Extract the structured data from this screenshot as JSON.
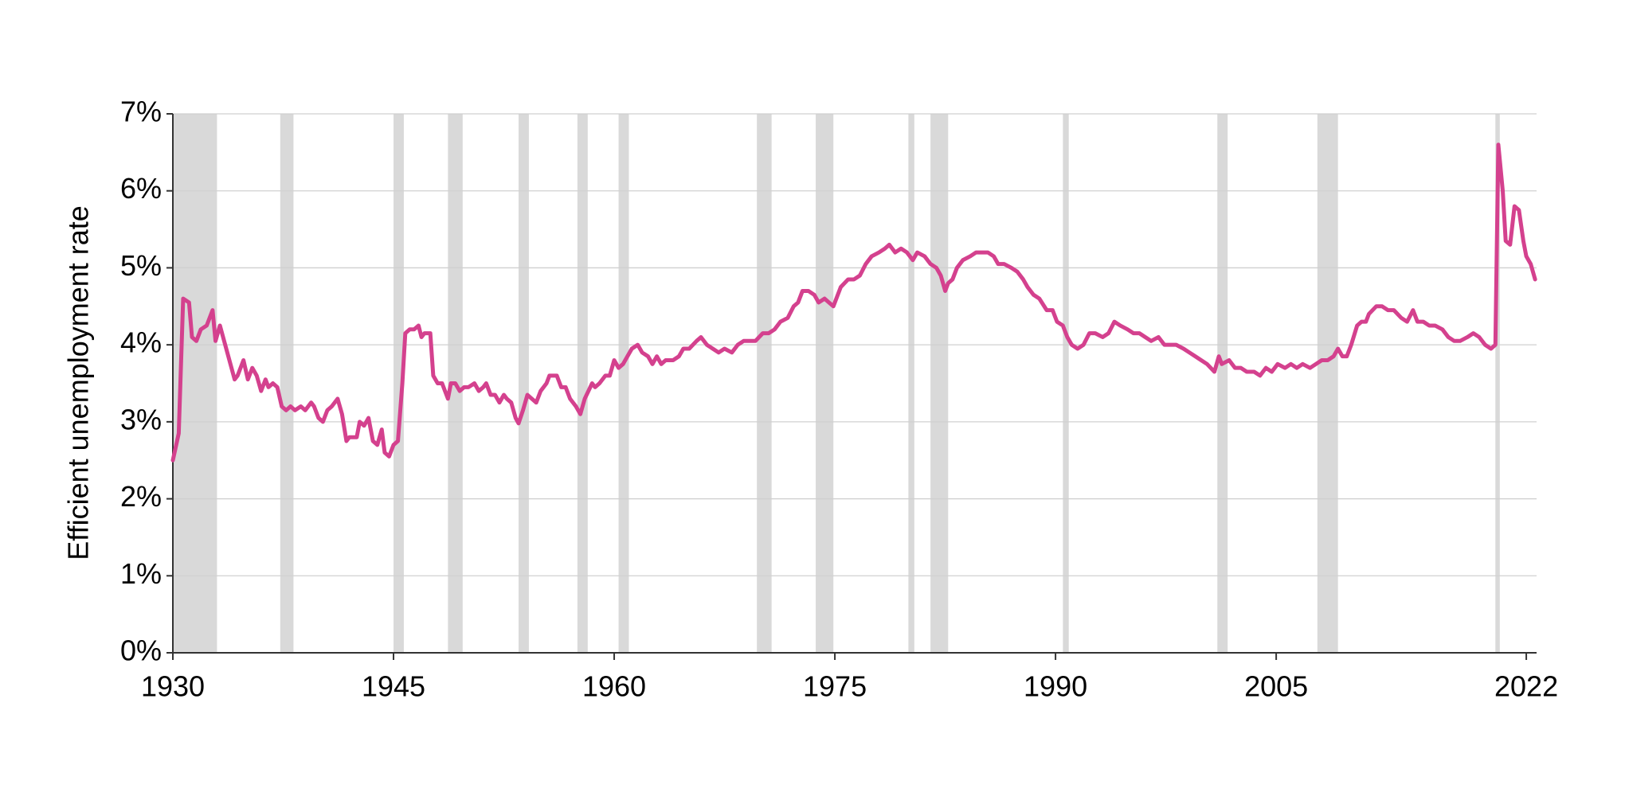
{
  "chart_data": {
    "type": "line",
    "ylabel": "Efficient unemployment rate",
    "color": "#d4418e",
    "shade_color": "#d9d9d9",
    "grid": true,
    "xlim": [
      1930,
      2022.7
    ],
    "xticks": [
      1930,
      1945,
      1960,
      1975,
      1990,
      2005,
      2022
    ],
    "ylim": [
      0,
      7
    ],
    "yticks": [
      {
        "value": 0,
        "label": "0%"
      },
      {
        "value": 1,
        "label": "1%"
      },
      {
        "value": 2,
        "label": "2%"
      },
      {
        "value": 3,
        "label": "3%"
      },
      {
        "value": 4,
        "label": "4%"
      },
      {
        "value": 5,
        "label": "5%"
      },
      {
        "value": 6,
        "label": "6%"
      },
      {
        "value": 7,
        "label": "7%"
      }
    ],
    "recessions": [
      [
        1930.0,
        1933.0
      ],
      [
        1937.3,
        1938.2
      ],
      [
        1945.0,
        1945.7
      ],
      [
        1948.7,
        1949.7
      ],
      [
        1953.5,
        1954.2
      ],
      [
        1957.5,
        1958.2
      ],
      [
        1960.3,
        1961.0
      ],
      [
        1969.7,
        1970.7
      ],
      [
        1973.7,
        1974.9
      ],
      [
        1980.0,
        1980.4
      ],
      [
        1981.5,
        1982.7
      ],
      [
        1990.5,
        1990.9
      ],
      [
        2001.0,
        2001.7
      ],
      [
        2007.8,
        2009.2
      ],
      [
        2019.9,
        2020.2
      ]
    ],
    "x": [
      1930.0,
      1930.4,
      1930.7,
      1931.1,
      1931.3,
      1931.6,
      1931.9,
      1932.3,
      1932.7,
      1932.9,
      1933.2,
      1933.7,
      1934.2,
      1934.4,
      1934.8,
      1935.1,
      1935.4,
      1935.7,
      1936.0,
      1936.3,
      1936.5,
      1936.8,
      1937.1,
      1937.4,
      1937.7,
      1938.0,
      1938.3,
      1938.7,
      1939.0,
      1939.4,
      1939.6,
      1939.9,
      1940.2,
      1940.5,
      1940.8,
      1941.2,
      1941.5,
      1941.8,
      1942.0,
      1942.5,
      1942.7,
      1943.0,
      1943.3,
      1943.6,
      1943.9,
      1944.2,
      1944.4,
      1944.7,
      1945.0,
      1945.3,
      1945.6,
      1945.8,
      1946.1,
      1946.4,
      1946.7,
      1946.9,
      1947.1,
      1947.5,
      1947.7,
      1948.0,
      1948.3,
      1948.7,
      1948.9,
      1949.2,
      1949.5,
      1949.8,
      1950.1,
      1950.5,
      1950.8,
      1951.1,
      1951.3,
      1951.6,
      1951.9,
      1952.2,
      1952.5,
      1952.7,
      1953.0,
      1953.3,
      1953.5,
      1953.8,
      1954.1,
      1954.4,
      1954.7,
      1955.0,
      1955.4,
      1955.6,
      1956.1,
      1956.4,
      1956.7,
      1957.0,
      1957.4,
      1957.7,
      1958.0,
      1958.5,
      1958.7,
      1959.0,
      1959.4,
      1959.7,
      1960.0,
      1960.3,
      1960.6,
      1960.9,
      1961.2,
      1961.6,
      1961.9,
      1962.3,
      1962.6,
      1962.9,
      1963.2,
      1963.5,
      1964.0,
      1964.4,
      1964.7,
      1965.1,
      1965.6,
      1965.9,
      1966.3,
      1966.7,
      1967.1,
      1967.5,
      1968.0,
      1968.4,
      1968.8,
      1969.2,
      1969.6,
      1970.1,
      1970.5,
      1970.9,
      1971.3,
      1971.8,
      1972.2,
      1972.5,
      1972.8,
      1973.2,
      1973.6,
      1973.9,
      1974.3,
      1974.6,
      1974.9,
      1975.2,
      1975.4,
      1975.9,
      1976.3,
      1976.7,
      1977.1,
      1977.5,
      1978.0,
      1978.4,
      1978.7,
      1979.1,
      1979.5,
      1979.9,
      1980.3,
      1980.6,
      1981.1,
      1981.5,
      1981.9,
      1982.2,
      1982.5,
      1982.7,
      1983.0,
      1983.3,
      1983.7,
      1984.2,
      1984.6,
      1985.0,
      1985.4,
      1985.8,
      1986.1,
      1986.5,
      1987.0,
      1987.4,
      1987.8,
      1988.1,
      1988.5,
      1988.9,
      1989.4,
      1989.8,
      1990.1,
      1990.5,
      1990.8,
      1991.1,
      1991.5,
      1991.9,
      1992.3,
      1992.7,
      1993.2,
      1993.6,
      1994.0,
      1994.4,
      1994.9,
      1995.3,
      1995.7,
      1996.1,
      1996.5,
      1997.0,
      1997.4,
      1997.8,
      1998.2,
      1998.7,
      1999.1,
      1999.5,
      1999.9,
      2000.3,
      2000.8,
      2001.1,
      2001.3,
      2001.8,
      2002.2,
      2002.6,
      2003.0,
      2003.5,
      2003.9,
      2004.3,
      2004.7,
      2005.1,
      2005.6,
      2006.0,
      2006.4,
      2006.8,
      2007.3,
      2007.7,
      2008.1,
      2008.5,
      2008.9,
      2009.2,
      2009.5,
      2009.8,
      2010.1,
      2010.5,
      2010.8,
      2011.1,
      2011.3,
      2011.8,
      2012.2,
      2012.6,
      2013.0,
      2013.5,
      2013.9,
      2014.3,
      2014.6,
      2015.0,
      2015.4,
      2015.8,
      2016.3,
      2016.7,
      2017.1,
      2017.5,
      2018.0,
      2018.4,
      2018.8,
      2019.2,
      2019.6,
      2019.9,
      2020.1,
      2020.4,
      2020.6,
      2020.9,
      2021.2,
      2021.5,
      2021.8,
      2022.0,
      2022.3,
      2022.6
    ],
    "values": [
      2.5,
      2.85,
      4.6,
      4.55,
      4.1,
      4.05,
      4.2,
      4.25,
      4.45,
      4.05,
      4.25,
      3.9,
      3.55,
      3.6,
      3.8,
      3.55,
      3.7,
      3.6,
      3.4,
      3.55,
      3.45,
      3.5,
      3.45,
      3.2,
      3.15,
      3.2,
      3.15,
      3.2,
      3.15,
      3.25,
      3.2,
      3.05,
      3.0,
      3.15,
      3.2,
      3.3,
      3.1,
      2.75,
      2.8,
      2.8,
      3.0,
      2.95,
      3.05,
      2.75,
      2.7,
      2.9,
      2.6,
      2.55,
      2.7,
      2.75,
      3.5,
      4.15,
      4.2,
      4.2,
      4.25,
      4.1,
      4.15,
      4.15,
      3.6,
      3.5,
      3.5,
      3.3,
      3.5,
      3.5,
      3.4,
      3.45,
      3.45,
      3.5,
      3.4,
      3.45,
      3.5,
      3.35,
      3.35,
      3.25,
      3.35,
      3.3,
      3.25,
      3.05,
      2.98,
      3.15,
      3.35,
      3.3,
      3.25,
      3.4,
      3.5,
      3.6,
      3.6,
      3.45,
      3.45,
      3.3,
      3.2,
      3.1,
      3.3,
      3.5,
      3.45,
      3.5,
      3.6,
      3.6,
      3.8,
      3.7,
      3.75,
      3.85,
      3.95,
      4.0,
      3.9,
      3.85,
      3.75,
      3.85,
      3.75,
      3.8,
      3.8,
      3.85,
      3.95,
      3.95,
      4.05,
      4.1,
      4.0,
      3.95,
      3.9,
      3.95,
      3.9,
      4.0,
      4.05,
      4.05,
      4.05,
      4.15,
      4.15,
      4.2,
      4.3,
      4.35,
      4.5,
      4.55,
      4.7,
      4.7,
      4.65,
      4.55,
      4.6,
      4.55,
      4.5,
      4.65,
      4.75,
      4.85,
      4.85,
      4.9,
      5.05,
      5.15,
      5.2,
      5.25,
      5.3,
      5.2,
      5.25,
      5.2,
      5.1,
      5.2,
      5.15,
      5.05,
      5.0,
      4.9,
      4.7,
      4.8,
      4.85,
      5.0,
      5.1,
      5.15,
      5.2,
      5.2,
      5.2,
      5.15,
      5.05,
      5.05,
      5.0,
      4.95,
      4.85,
      4.75,
      4.65,
      4.6,
      4.45,
      4.45,
      4.3,
      4.25,
      4.1,
      4.0,
      3.95,
      4.0,
      4.15,
      4.15,
      4.1,
      4.15,
      4.3,
      4.25,
      4.2,
      4.15,
      4.15,
      4.1,
      4.05,
      4.1,
      4.0,
      4.0,
      4.0,
      3.95,
      3.9,
      3.85,
      3.8,
      3.75,
      3.65,
      3.85,
      3.75,
      3.8,
      3.7,
      3.7,
      3.65,
      3.65,
      3.6,
      3.7,
      3.65,
      3.75,
      3.7,
      3.75,
      3.7,
      3.75,
      3.7,
      3.75,
      3.8,
      3.8,
      3.85,
      3.95,
      3.85,
      3.85,
      4.0,
      4.25,
      4.3,
      4.3,
      4.4,
      4.5,
      4.5,
      4.45,
      4.45,
      4.35,
      4.3,
      4.45,
      4.3,
      4.3,
      4.25,
      4.25,
      4.2,
      4.1,
      4.05,
      4.05,
      4.1,
      4.15,
      4.1,
      4.0,
      3.95,
      4.0,
      6.6,
      6.0,
      5.35,
      5.3,
      5.8,
      5.75,
      5.35,
      5.15,
      5.05,
      4.85
    ]
  }
}
